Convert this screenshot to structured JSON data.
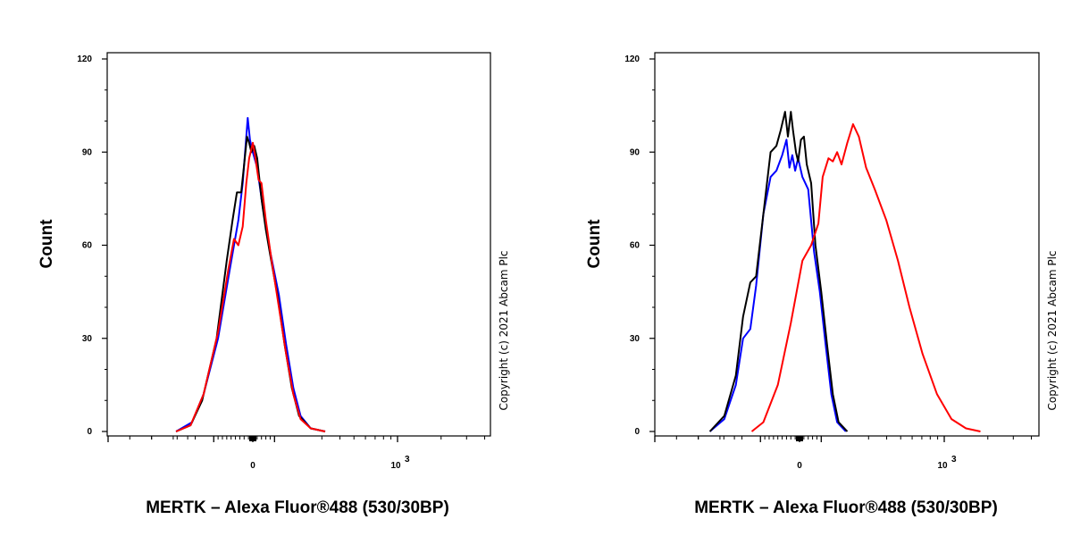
{
  "chart_data": [
    {
      "type": "line",
      "panel": "left",
      "xlabel": "MERTK – Alexa Fluor®488 (530/30BP)",
      "ylabel": "Count",
      "ylim": [
        0,
        120
      ],
      "yticks": [
        0,
        30,
        60,
        90,
        120
      ],
      "x_scale": "biexponential",
      "x_tick_labels": [
        {
          "text": "0",
          "exp": ""
        },
        {
          "text": "10",
          "exp": "3"
        }
      ],
      "grid": false,
      "annotation": "Copyright (c) 2021 Abcam Plc",
      "series": [
        {
          "color": "#0000ff",
          "points": [
            [
              -0.53,
              0
            ],
            [
              -0.42,
              3
            ],
            [
              -0.34,
              12
            ],
            [
              -0.24,
              30
            ],
            [
              -0.16,
              52
            ],
            [
              -0.1,
              68
            ],
            [
              -0.07,
              80
            ],
            [
              -0.05,
              92
            ],
            [
              -0.035,
              101
            ],
            [
              -0.02,
              94
            ],
            [
              0.0,
              90
            ],
            [
              0.03,
              85
            ],
            [
              0.07,
              72
            ],
            [
              0.12,
              58
            ],
            [
              0.18,
              44
            ],
            [
              0.23,
              28
            ],
            [
              0.28,
              14
            ],
            [
              0.33,
              5
            ],
            [
              0.4,
              1
            ],
            [
              0.5,
              0
            ]
          ]
        },
        {
          "color": "#000000",
          "points": [
            [
              -0.53,
              0
            ],
            [
              -0.43,
              2
            ],
            [
              -0.35,
              10
            ],
            [
              -0.25,
              30
            ],
            [
              -0.18,
              55
            ],
            [
              -0.14,
              68
            ],
            [
              -0.11,
              77
            ],
            [
              -0.08,
              77
            ],
            [
              -0.06,
              86
            ],
            [
              -0.04,
              95
            ],
            [
              -0.025,
              93
            ],
            [
              -0.01,
              90
            ],
            [
              0.01,
              92
            ],
            [
              0.03,
              88
            ],
            [
              0.06,
              75
            ],
            [
              0.09,
              65
            ],
            [
              0.12,
              57
            ],
            [
              0.17,
              44
            ],
            [
              0.22,
              28
            ],
            [
              0.27,
              14
            ],
            [
              0.32,
              5
            ],
            [
              0.4,
              1
            ],
            [
              0.5,
              0
            ]
          ]
        },
        {
          "color": "#ff0000",
          "points": [
            [
              -0.53,
              0
            ],
            [
              -0.43,
              2
            ],
            [
              -0.34,
              12
            ],
            [
              -0.24,
              32
            ],
            [
              -0.17,
              52
            ],
            [
              -0.13,
              62
            ],
            [
              -0.1,
              60
            ],
            [
              -0.07,
              66
            ],
            [
              -0.045,
              80
            ],
            [
              -0.025,
              88
            ],
            [
              -0.01,
              91
            ],
            [
              0.0,
              93
            ],
            [
              0.015,
              89
            ],
            [
              0.04,
              81
            ],
            [
              0.06,
              80
            ],
            [
              0.09,
              68
            ],
            [
              0.13,
              55
            ],
            [
              0.18,
              40
            ],
            [
              0.23,
              25
            ],
            [
              0.28,
              12
            ],
            [
              0.33,
              4
            ],
            [
              0.4,
              1
            ],
            [
              0.5,
              0
            ]
          ]
        }
      ]
    },
    {
      "type": "line",
      "panel": "right",
      "xlabel": "MERTK – Alexa Fluor®488 (530/30BP)",
      "ylabel": "Count",
      "ylim": [
        0,
        120
      ],
      "yticks": [
        0,
        30,
        60,
        90,
        120
      ],
      "x_scale": "biexponential",
      "x_tick_labels": [
        {
          "text": "0",
          "exp": ""
        },
        {
          "text": "10",
          "exp": "3"
        }
      ],
      "grid": false,
      "annotation": "Copyright (c) 2021 Abcam Plc",
      "series": [
        {
          "color": "#0000ff",
          "points": [
            [
              -0.62,
              0
            ],
            [
              -0.52,
              4
            ],
            [
              -0.44,
              15
            ],
            [
              -0.39,
              30
            ],
            [
              -0.34,
              33
            ],
            [
              -0.3,
              47
            ],
            [
              -0.25,
              70
            ],
            [
              -0.2,
              82
            ],
            [
              -0.16,
              84
            ],
            [
              -0.12,
              89
            ],
            [
              -0.09,
              94
            ],
            [
              -0.07,
              85
            ],
            [
              -0.05,
              89
            ],
            [
              -0.03,
              84
            ],
            [
              -0.01,
              88
            ],
            [
              0.02,
              82
            ],
            [
              0.06,
              78
            ],
            [
              0.1,
              58
            ],
            [
              0.14,
              45
            ],
            [
              0.18,
              28
            ],
            [
              0.22,
              12
            ],
            [
              0.26,
              3
            ],
            [
              0.32,
              0
            ]
          ]
        },
        {
          "color": "#000000",
          "points": [
            [
              -0.62,
              0
            ],
            [
              -0.52,
              5
            ],
            [
              -0.44,
              18
            ],
            [
              -0.39,
              37
            ],
            [
              -0.34,
              48
            ],
            [
              -0.3,
              50
            ],
            [
              -0.25,
              70
            ],
            [
              -0.2,
              90
            ],
            [
              -0.16,
              92
            ],
            [
              -0.13,
              97
            ],
            [
              -0.1,
              103
            ],
            [
              -0.08,
              95
            ],
            [
              -0.06,
              103
            ],
            [
              -0.045,
              97
            ],
            [
              -0.025,
              90
            ],
            [
              -0.01,
              87
            ],
            [
              0.01,
              94
            ],
            [
              0.03,
              95
            ],
            [
              0.05,
              86
            ],
            [
              0.08,
              80
            ],
            [
              0.11,
              60
            ],
            [
              0.15,
              45
            ],
            [
              0.19,
              28
            ],
            [
              0.23,
              12
            ],
            [
              0.27,
              3
            ],
            [
              0.33,
              0
            ]
          ]
        },
        {
          "color": "#ff0000",
          "points": [
            [
              -0.33,
              0
            ],
            [
              -0.25,
              3
            ],
            [
              -0.15,
              15
            ],
            [
              -0.06,
              35
            ],
            [
              0.02,
              55
            ],
            [
              0.08,
              60
            ],
            [
              0.13,
              67
            ],
            [
              0.16,
              82
            ],
            [
              0.2,
              88
            ],
            [
              0.23,
              87
            ],
            [
              0.26,
              90
            ],
            [
              0.29,
              86
            ],
            [
              0.33,
              93
            ],
            [
              0.37,
              99
            ],
            [
              0.41,
              95
            ],
            [
              0.46,
              85
            ],
            [
              0.52,
              78
            ],
            [
              0.6,
              68
            ],
            [
              0.68,
              55
            ],
            [
              0.76,
              40
            ],
            [
              0.85,
              25
            ],
            [
              0.95,
              12
            ],
            [
              1.05,
              4
            ],
            [
              1.15,
              1
            ],
            [
              1.25,
              0
            ]
          ]
        }
      ]
    }
  ]
}
